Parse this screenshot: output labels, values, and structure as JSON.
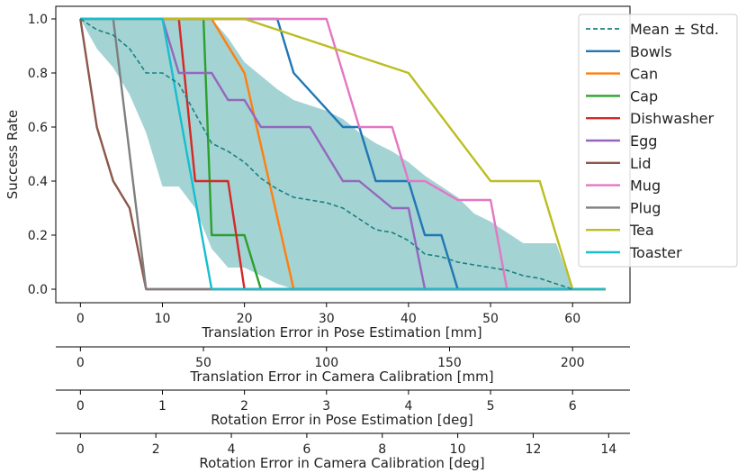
{
  "chart_data": {
    "type": "line",
    "ylabel": "Success Rate",
    "ylim": [
      0,
      1
    ],
    "yticks": [
      "0.0",
      "0.2",
      "0.4",
      "0.6",
      "0.8",
      "1.0"
    ],
    "xlim": [
      -3,
      67
    ],
    "legend_position": "right",
    "x_axes": [
      {
        "label": "Translation Error in Pose Estimation [mm]",
        "ticks": [
          0,
          10,
          20,
          30,
          40,
          50,
          60
        ],
        "scale": 1
      },
      {
        "label": "Translation Error in Camera Calibration [mm]",
        "ticks": [
          0,
          50,
          100,
          150,
          200
        ],
        "scale": 0.3
      },
      {
        "label": "Rotation Error in Pose Estimation [deg]",
        "ticks": [
          0,
          1,
          2,
          3,
          4,
          5,
          6
        ],
        "scale": 10
      },
      {
        "label": "Rotation Error in Camera Calibration [deg]",
        "ticks": [
          0,
          2,
          4,
          6,
          8,
          10,
          12,
          14
        ],
        "scale": 4.6
      }
    ],
    "mean_std": {
      "name": "Mean ± Std.",
      "color": "#1a8080",
      "band_color": "#5aafb0",
      "x": [
        0,
        2,
        4,
        6,
        8,
        10,
        12,
        14,
        16,
        18,
        20,
        22,
        24,
        26,
        28,
        30,
        32,
        34,
        36,
        38,
        40,
        42,
        44,
        46,
        48,
        50,
        52,
        54,
        56,
        58,
        60
      ],
      "mean": [
        1.0,
        0.96,
        0.94,
        0.89,
        0.8,
        0.8,
        0.76,
        0.65,
        0.54,
        0.51,
        0.47,
        0.41,
        0.37,
        0.34,
        0.33,
        0.32,
        0.3,
        0.26,
        0.22,
        0.21,
        0.18,
        0.13,
        0.12,
        0.1,
        0.09,
        0.08,
        0.07,
        0.05,
        0.04,
        0.02,
        0.0
      ],
      "upper": [
        1.0,
        1.0,
        1.0,
        1.0,
        1.0,
        1.0,
        1.0,
        1.0,
        1.0,
        0.93,
        0.84,
        0.79,
        0.74,
        0.7,
        0.68,
        0.66,
        0.63,
        0.58,
        0.54,
        0.51,
        0.47,
        0.42,
        0.38,
        0.34,
        0.28,
        0.25,
        0.21,
        0.17,
        0.17,
        0.17,
        0.0
      ],
      "lower": [
        1.0,
        0.89,
        0.82,
        0.72,
        0.58,
        0.38,
        0.38,
        0.3,
        0.15,
        0.08,
        0.08,
        0.05,
        0.02,
        0.0,
        0.0,
        0.0,
        0.0,
        0.0,
        0.0,
        0.0,
        0.0,
        0.0,
        0.0,
        0.0,
        0.0,
        0.0,
        0.0,
        0.0,
        0.0,
        0.0,
        0.0
      ]
    },
    "series": [
      {
        "name": "Bowls",
        "color": "#1f77b4",
        "x": [
          0,
          24,
          26,
          32,
          34,
          36,
          40,
          42,
          44,
          46,
          64
        ],
        "values": [
          1,
          1,
          0.8,
          0.6,
          0.6,
          0.4,
          0.4,
          0.2,
          0.2,
          0,
          0
        ]
      },
      {
        "name": "Can",
        "color": "#ff7f0e",
        "x": [
          0,
          16,
          20,
          26,
          64
        ],
        "values": [
          1,
          1,
          0.8,
          0,
          0
        ]
      },
      {
        "name": "Cap",
        "color": "#2ca02c",
        "x": [
          0,
          15,
          16,
          20,
          22,
          64
        ],
        "values": [
          1,
          1,
          0.2,
          0.2,
          0,
          0
        ]
      },
      {
        "name": "Dishwasher",
        "color": "#d62728",
        "x": [
          0,
          12,
          14,
          18,
          20,
          64
        ],
        "values": [
          1,
          1,
          0.4,
          0.4,
          0,
          0
        ]
      },
      {
        "name": "Egg",
        "color": "#9467bd",
        "x": [
          0,
          10,
          12,
          16,
          18,
          20,
          22,
          24,
          28,
          32,
          34,
          36,
          38,
          40,
          42,
          64
        ],
        "values": [
          1,
          1,
          0.8,
          0.8,
          0.7,
          0.7,
          0.6,
          0.6,
          0.6,
          0.4,
          0.4,
          0.35,
          0.3,
          0.3,
          0,
          0
        ]
      },
      {
        "name": "Lid",
        "color": "#8c564b",
        "x": [
          0,
          2,
          4,
          6,
          8,
          64
        ],
        "values": [
          1,
          0.6,
          0.4,
          0.3,
          0,
          0
        ]
      },
      {
        "name": "Mug",
        "color": "#e377c2",
        "x": [
          0,
          30,
          32,
          34,
          36,
          38,
          40,
          42,
          46,
          50,
          52,
          64
        ],
        "values": [
          1,
          1,
          0.8,
          0.6,
          0.6,
          0.6,
          0.4,
          0.4,
          0.33,
          0.33,
          0,
          0
        ]
      },
      {
        "name": "Plug",
        "color": "#7f7f7f",
        "x": [
          0,
          4,
          8,
          64
        ],
        "values": [
          1,
          1,
          0,
          0
        ]
      },
      {
        "name": "Tea",
        "color": "#bcbd22",
        "x": [
          0,
          20,
          40,
          50,
          56,
          60,
          64
        ],
        "values": [
          1,
          1,
          0.8,
          0.4,
          0.4,
          0,
          0
        ]
      },
      {
        "name": "Toaster",
        "color": "#17becf",
        "x": [
          0,
          10,
          16,
          64
        ],
        "values": [
          1,
          1,
          0,
          0
        ]
      }
    ]
  }
}
